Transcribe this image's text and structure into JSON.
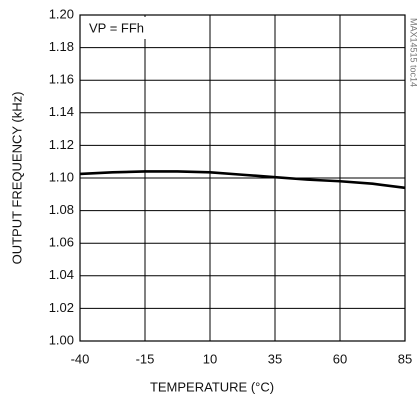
{
  "chart_data": {
    "type": "line",
    "annotation": "VP = FFh",
    "note": "MAX14515 toc14",
    "x_label": "TEMPERATURE (°C)",
    "y_label": "OUTPUT FREQUENCY (kHz)",
    "x": [
      -40,
      -27.5,
      -15,
      -2.5,
      10,
      22.5,
      35,
      47.5,
      60,
      72.5,
      85
    ],
    "values": [
      1.1025,
      1.1035,
      1.104,
      1.104,
      1.1035,
      1.102,
      1.1005,
      1.099,
      1.098,
      1.0965,
      1.094
    ],
    "color": "#000000",
    "xlim": [
      -40,
      85
    ],
    "xticks": [
      -40,
      -15,
      10,
      35,
      60,
      85
    ],
    "ylim": [
      1.0,
      1.2
    ],
    "yticks": [
      {
        "value": 1.0,
        "label": "1.00"
      },
      1.02,
      1.04,
      1.06,
      1.08,
      {
        "value": 1.1,
        "label": "1.10"
      },
      1.12,
      1.14,
      1.16,
      1.18,
      {
        "value": 1.2,
        "label": "1.20"
      }
    ],
    "grid": true
  }
}
